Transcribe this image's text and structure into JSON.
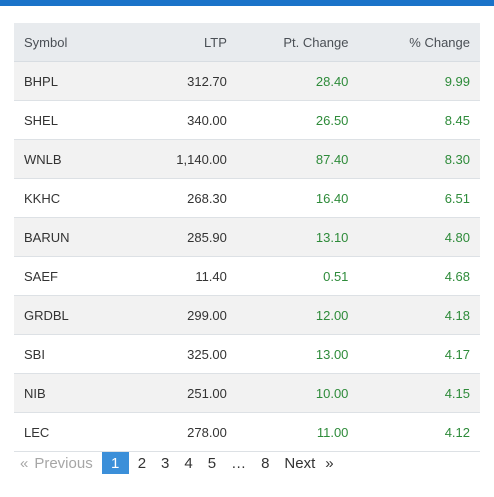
{
  "colors": {
    "topbar": "#1a73c9",
    "positive": "#2e8b3a",
    "header_bg": "#e8ebee",
    "current_page": "#3b8fd9"
  },
  "table": {
    "headers": {
      "symbol": "Symbol",
      "ltp": "LTP",
      "pt_change": "Pt. Change",
      "pct_change": "% Change"
    },
    "rows": [
      {
        "symbol": "BHPL",
        "ltp": "312.70",
        "pt_change": "28.40",
        "pct_change": "9.99"
      },
      {
        "symbol": "SHEL",
        "ltp": "340.00",
        "pt_change": "26.50",
        "pct_change": "8.45"
      },
      {
        "symbol": "WNLB",
        "ltp": "1,140.00",
        "pt_change": "87.40",
        "pct_change": "8.30"
      },
      {
        "symbol": "KKHC",
        "ltp": "268.30",
        "pt_change": "16.40",
        "pct_change": "6.51"
      },
      {
        "symbol": "BARUN",
        "ltp": "285.90",
        "pt_change": "13.10",
        "pct_change": "4.80"
      },
      {
        "symbol": "SAEF",
        "ltp": "11.40",
        "pt_change": "0.51",
        "pct_change": "4.68"
      },
      {
        "symbol": "GRDBL",
        "ltp": "299.00",
        "pt_change": "12.00",
        "pct_change": "4.18"
      },
      {
        "symbol": "SBI",
        "ltp": "325.00",
        "pt_change": "13.00",
        "pct_change": "4.17"
      },
      {
        "symbol": "NIB",
        "ltp": "251.00",
        "pt_change": "10.00",
        "pct_change": "4.15"
      },
      {
        "symbol": "LEC",
        "ltp": "278.00",
        "pt_change": "11.00",
        "pct_change": "4.12"
      }
    ]
  },
  "pagination": {
    "prev_arrow": "«",
    "prev_label": "Previous",
    "pages": [
      "1",
      "2",
      "3",
      "4",
      "5"
    ],
    "ellipsis": "…",
    "last_page": "8",
    "next_label": "Next",
    "next_arrow": "»",
    "current": "1"
  }
}
